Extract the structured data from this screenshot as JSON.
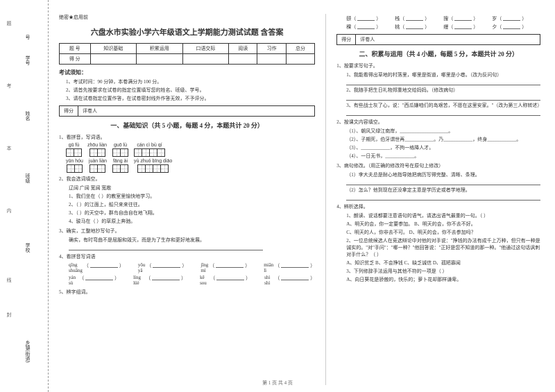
{
  "binding": {
    "labels": [
      "号",
      "学号",
      "姓名",
      "班级",
      "学校",
      "乡镇(街道)"
    ],
    "marks": [
      "题",
      "考",
      "本",
      "内",
      "线",
      "封"
    ]
  },
  "header": {
    "secret": "绝密★启用前"
  },
  "title": "六盘水市实验小学六年级语文上学期能力测试试题 含答案",
  "scoreTable": {
    "cols": [
      "题 号",
      "知识基础",
      "积累运用",
      "口语交际",
      "阅读",
      "习作",
      "总分"
    ],
    "row2": "得 分"
  },
  "notice": {
    "heading": "考试须知：",
    "items": [
      "1、考试时间：90 分钟，本卷满分为 100 分。",
      "2、请首先按要求在试卷的指定位置填写您的姓名、班级、学号。",
      "3、请在试卷指定位置作答，在试卷密封线外作答无效，不予评分。"
    ]
  },
  "strip": {
    "a": "得分",
    "b": "评卷人"
  },
  "sec1": {
    "heading": "一、基础知识（共 5 小题，每题 4 分，本题共计 20 分）",
    "q1": "1、看拼音，写词语。",
    "pinyin1": [
      "gū fù",
      "zhōu liàn",
      "guō lù",
      "cán cì bù qí"
    ],
    "cells1": [
      2,
      2,
      2,
      4
    ],
    "pinyin2": [
      "yūn hóu",
      "juàn liàn",
      "fāng ài",
      "yù zhuó bīng diāo"
    ],
    "cells2": [
      2,
      2,
      2,
      4
    ],
    "q2": "2、我会选词填空。",
    "q2opts": "辽阔        广阔        宽阔        宽敞",
    "q2items": [
      "1、我们坐在（            ）的教室里愉快地学习。",
      "2、（            ）的江面上，船只来来往往。",
      "3、（            ）的天空中，群鸟自由自在地飞翔。",
      "4、骏马在（            ）的草原上奔驰。"
    ],
    "q3": "3、确实，工整地抄写句子。",
    "q3text": "确实，有时弯曲不是屈服和毁灭，而是为了生存和更好地发展。",
    "q4": "4、看拼音写词语",
    "q4r1": [
      "qīng shuāng",
      "yōu yǎ",
      "jīng mì",
      "miǎn lì"
    ],
    "q4r2": [
      "yán sù",
      "líng lüè",
      "kē sou",
      "shì shì"
    ],
    "q5": "5、辨字组词。"
  },
  "sec1b": {
    "chars1": [
      "颐（",
      "栈（",
      "搜（",
      "岁（"
    ],
    "chars2": [
      "稞（",
      "桃（",
      "缦（",
      "夕（"
    ]
  },
  "sec2": {
    "heading": "二、积累与运用（共 4 小题，每题 5 分，本题共计 20 分）",
    "q1": "1、按要求写句子。",
    "q1items": [
      "1、我能看得出草地的村落里，哪里是街道，哪里是小巷。（改为反问句）",
      "2、我随手把生日礼物郑重地交给妈妈。（修改病句）",
      "3、有些战士灰了心，说：\"西瓜嫌咱们的岛艰苦，不愿在这里安家。\"（改为第三人称转述）"
    ],
    "q2": "2、按课文内容填空。",
    "q2items": [
      "（1）、朝风又绿江南岸，____________________。",
      "（2）、子期死，伯牙谓世再____________。乃____________，终身____________。",
      "（3）、____________，不拘一格降人才。",
      "（4）、一日无书，____________。"
    ],
    "q3": "3、病句修改。（用正确的修改符号在原句上修改）",
    "q3items": [
      "（1）李大夫总是耐心地指导她把病历写得完整、清晰、条理。",
      "（2）怎么？他到现在还没拿定主意是学历史或者学地理。"
    ],
    "q4": "4、辨析选择。",
    "q4items": [
      "1、朗读、说话都要注意语句的语气，请选出语气最重的一句。（        ）",
      "A、明天的会，你一定要参加。    B、明天的会，你不去不好。",
      "C、明天的人，你非去不可。    D、明天的会，你不去参加吗？",
      "2、一位总统候选人在竞选辩论中对他的对手说：\"挣钱的办法有成千上万种，但只有一种是诚实的。\"对\"手问\"：\"哪一种？\"他回答说：\"正好是您不知道的那一种。\"他通过这句话讽刺对手什么？（        ）",
      "A、知识贫乏   B、不会挣钱   C、缺乏诚信   D、孤陋寡闻",
      "3、下列修辞手法运用与其他不符的一项是（        ）",
      "A、向日葵花是骄傲的，快乐的；萝卜花却那样谦卑。"
    ]
  },
  "footer": "第 1 页  共 4 页"
}
